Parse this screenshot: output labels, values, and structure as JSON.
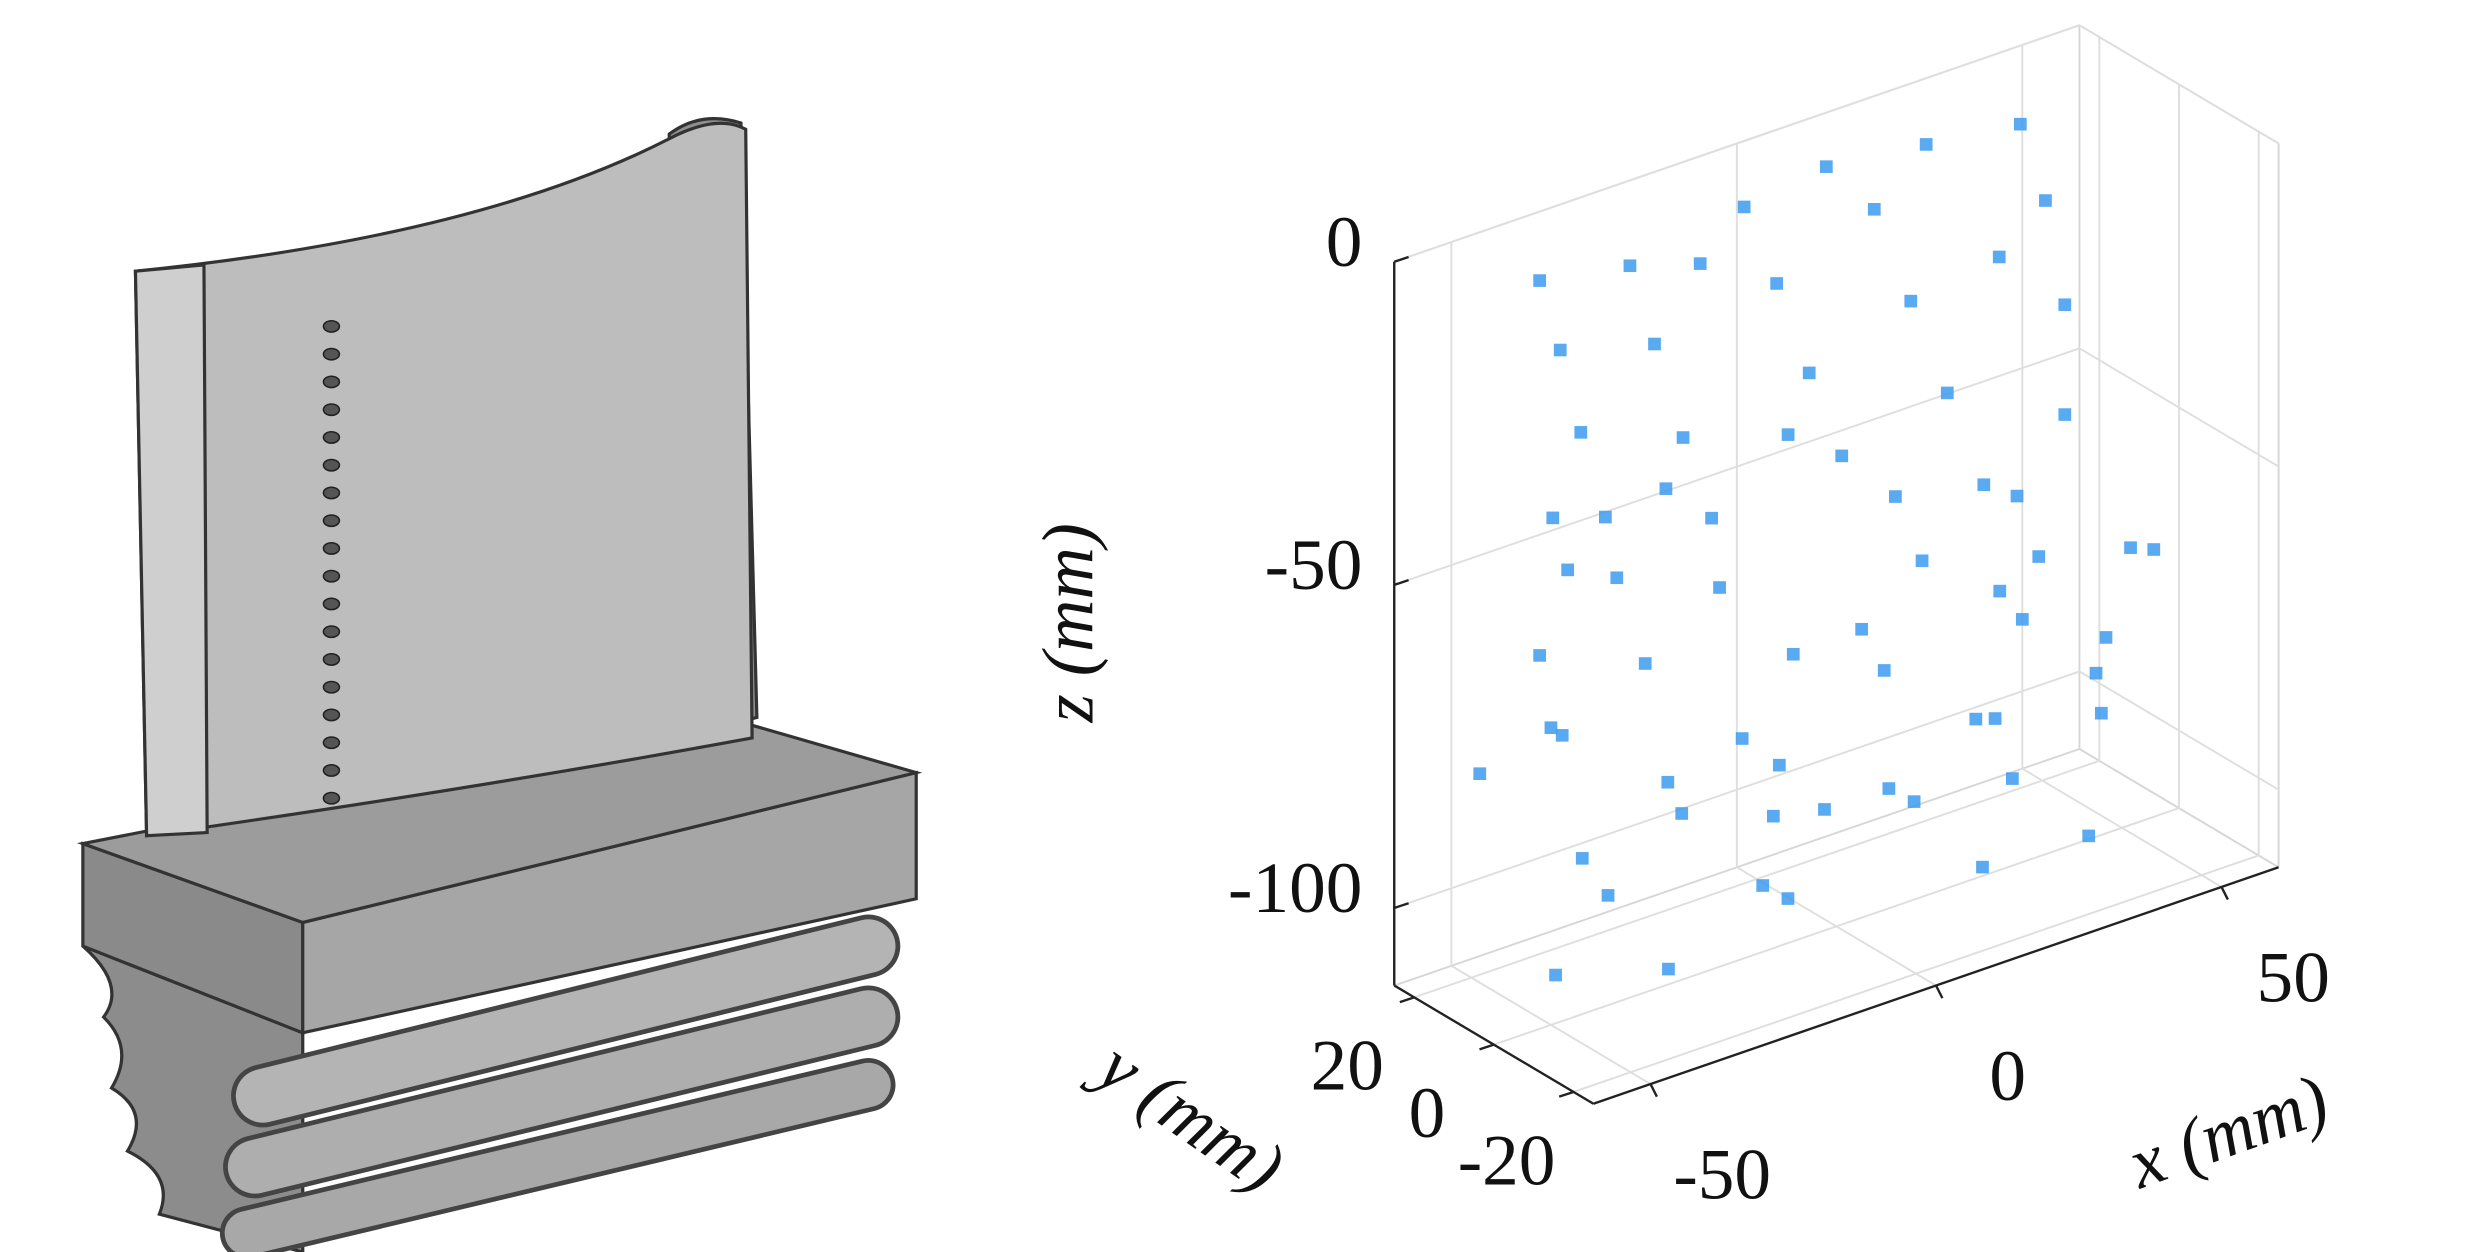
{
  "chart_data": {
    "type": "scatter3d",
    "xlabel": "x (mm)",
    "ylabel": "y (mm)",
    "zlabel": "z (mm)",
    "xlim": [
      -60,
      60
    ],
    "ylim": [
      -25,
      25
    ],
    "zlim": [
      -112,
      0
    ],
    "xticks": [
      -50,
      0,
      50
    ],
    "yticks": [
      -20,
      0,
      20
    ],
    "zticks": [
      -100,
      -50,
      0
    ],
    "grid": true,
    "series": [
      {
        "color": "#3d9bf0",
        "x": [
          -45,
          -40,
          -35,
          -30,
          -25,
          -20,
          -15,
          -10,
          -5,
          0,
          5,
          10,
          15,
          20,
          25,
          30,
          35,
          38,
          40,
          40,
          -42,
          -28,
          -12,
          2,
          18,
          32,
          -38,
          8,
          22,
          -18,
          -55,
          -50,
          -45,
          -40,
          -30,
          -20,
          -10,
          0,
          10,
          20,
          30,
          40,
          50,
          55,
          -52,
          -25,
          5,
          35,
          48,
          15,
          -48,
          -40,
          -35,
          -25,
          -15,
          -5,
          5,
          15,
          25,
          35,
          45,
          50,
          -45,
          -10,
          20,
          40,
          0,
          30
        ],
        "y": [
          10,
          12,
          14,
          15,
          16,
          17,
          17,
          17,
          16,
          15,
          14,
          13,
          12,
          10,
          8,
          6,
          4,
          2,
          0,
          0,
          11,
          15,
          17,
          15,
          11,
          5,
          13,
          14,
          9,
          17,
          -10,
          0,
          10,
          -15,
          5,
          -5,
          15,
          -12,
          8,
          -18,
          2,
          12,
          -8,
          5,
          15,
          -20,
          18,
          -15,
          18,
          0,
          -5,
          0,
          -8,
          3,
          -3,
          5,
          -6,
          2,
          -4,
          6,
          -2,
          4,
          6,
          0,
          -8,
          -6,
          3,
          8
        ],
        "z": [
          -2,
          -15,
          -30,
          -45,
          -8,
          -22,
          -38,
          -52,
          -5,
          -18,
          -33,
          -47,
          -10,
          -25,
          -40,
          -55,
          0,
          -12,
          -28,
          -45,
          -40,
          -55,
          -12,
          -42,
          -55,
          -20,
          -50,
          -2,
          -1,
          -45,
          -62,
          -66,
          -60,
          -72,
          -64,
          -75,
          -62,
          -68,
          -72,
          -64,
          -70,
          -62,
          -66,
          -72,
          -78,
          -80,
          -78,
          -78,
          -76,
          -60,
          -85,
          -95,
          -105,
          -88,
          -100,
          -108,
          -90,
          -98,
          -86,
          -102,
          -92,
          -84,
          -108,
          -84,
          -106,
          -108,
          -95,
          -92
        ]
      }
    ]
  }
}
